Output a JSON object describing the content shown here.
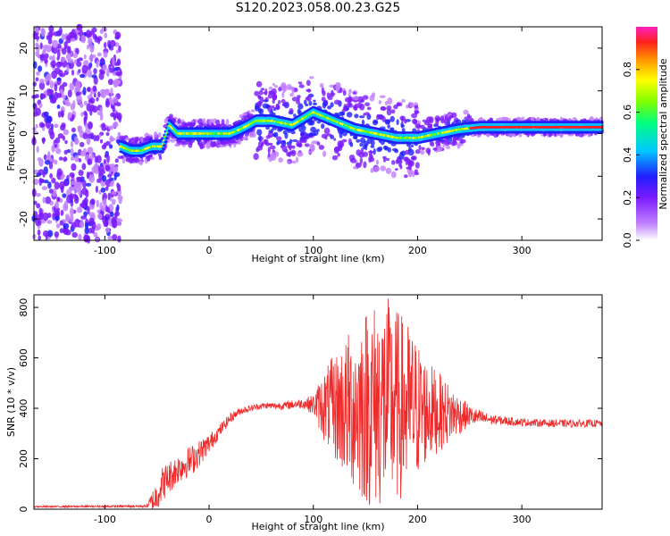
{
  "title": "S120.2023.058.00.23.G25",
  "colors": {
    "snr_line": "#ee2a2a",
    "frame": "#000000",
    "background": "#ffffff"
  },
  "chart_data": [
    {
      "type": "heatmap",
      "name": "spectrogram",
      "xlabel": "Height of straight line (km)",
      "ylabel": "Frequency (Hz)",
      "xlim": [
        -168,
        377
      ],
      "ylim": [
        -25,
        25
      ],
      "xticks": [
        -100,
        0,
        100,
        200,
        300
      ],
      "yticks": [
        -20,
        -10,
        0,
        10,
        20
      ],
      "colorbar": {
        "label": "Normalized spectral amplitude",
        "range": [
          0,
          1
        ],
        "ticks": [
          0.0,
          0.2,
          0.4,
          0.6,
          0.8
        ],
        "tick_labels": [
          "0.0",
          "0.2",
          "0.4",
          "0.6",
          "0.8"
        ],
        "colormap": [
          "#ffffff",
          "#c080ff",
          "#7a1aff",
          "#2020ff",
          "#00c8ff",
          "#00ff80",
          "#80ff00",
          "#ffff00",
          "#ff9000",
          "#ff2020",
          "#ff20c0"
        ]
      },
      "ridge": {
        "x": [
          -85,
          -75,
          -65,
          -55,
          -45,
          -38,
          -30,
          -20,
          -10,
          0,
          10,
          20,
          30,
          38,
          45,
          60,
          80,
          100,
          120,
          140,
          160,
          180,
          200,
          220,
          240,
          260,
          280,
          300,
          320,
          340,
          360,
          377
        ],
        "freq": [
          -3,
          -4,
          -4,
          -3,
          -3,
          2,
          0,
          0,
          0,
          0,
          0,
          0,
          1,
          2,
          3,
          3,
          2,
          5,
          3,
          1,
          0,
          -1,
          -1,
          0,
          1,
          1.5,
          1.5,
          1.5,
          1.5,
          1.5,
          1.5,
          1.5
        ]
      }
    },
    {
      "type": "line",
      "name": "snr",
      "xlabel": "Height of straight line (km)",
      "ylabel": "SNR (10 * v/v)",
      "xlim": [
        -168,
        377
      ],
      "ylim": [
        0,
        850
      ],
      "xticks": [
        -100,
        0,
        100,
        200,
        300
      ],
      "yticks": [
        0,
        200,
        400,
        600,
        800
      ],
      "envelope": {
        "x": [
          -168,
          -60,
          -52,
          -45,
          -30,
          -15,
          0,
          10,
          20,
          30,
          50,
          70,
          90,
          100,
          110,
          130,
          150,
          170,
          190,
          210,
          230,
          250,
          270,
          300,
          330,
          360,
          377
        ],
        "mean": [
          10,
          12,
          40,
          100,
          160,
          200,
          260,
          310,
          360,
          390,
          410,
          410,
          420,
          415,
          410,
          400,
          410,
          420,
          400,
          390,
          380,
          370,
          355,
          345,
          340,
          340,
          340
        ],
        "amplitude": [
          3,
          5,
          60,
          70,
          60,
          60,
          40,
          25,
          20,
          15,
          12,
          15,
          20,
          40,
          140,
          280,
          400,
          430,
          350,
          200,
          120,
          40,
          20,
          15,
          15,
          15,
          15
        ]
      }
    }
  ]
}
